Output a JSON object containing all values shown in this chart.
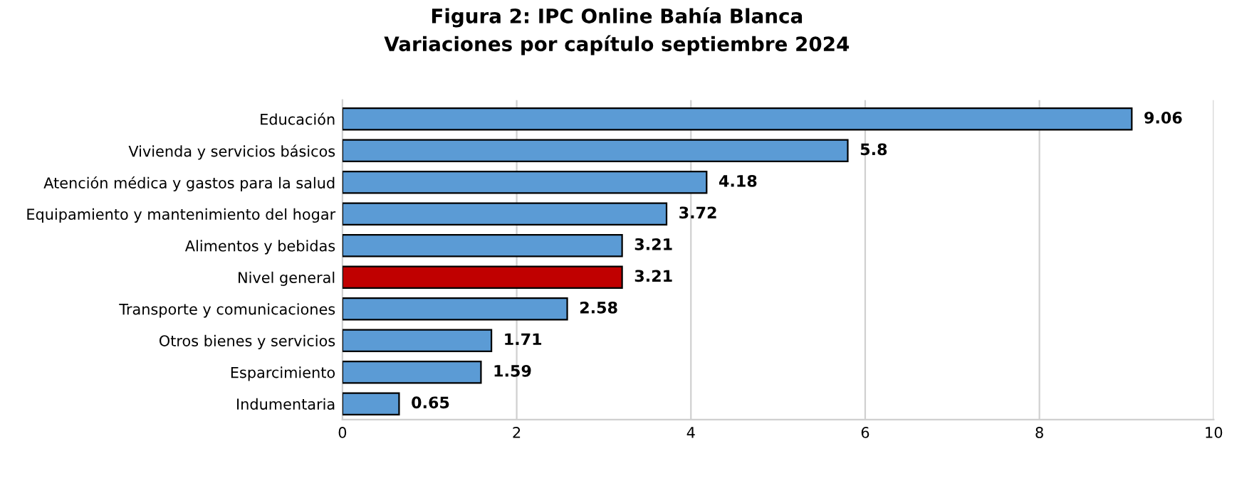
{
  "chart_data": {
    "type": "bar",
    "orientation": "horizontal",
    "title": "Figura 2: IPC Online Bahía Blanca\nVariaciones por capítulo septiembre 2024",
    "categories": [
      "Educación",
      "Vivienda y servicios básicos",
      "Atención médica y gastos para la salud",
      "Equipamiento y mantenimiento del hogar",
      "Alimentos y bebidas",
      "Nivel general",
      "Transporte y comunicaciones",
      "Otros bienes y servicios",
      "Esparcimiento",
      "Indumentaria"
    ],
    "values": [
      9.06,
      5.8,
      4.18,
      3.72,
      3.21,
      3.21,
      2.58,
      1.71,
      1.59,
      0.65
    ],
    "colors": [
      "#5b9bd5",
      "#5b9bd5",
      "#5b9bd5",
      "#5b9bd5",
      "#5b9bd5",
      "#c00000",
      "#5b9bd5",
      "#5b9bd5",
      "#5b9bd5",
      "#5b9bd5"
    ],
    "xlim": [
      0,
      10
    ],
    "xticks": [
      0,
      2,
      4,
      6,
      8,
      10
    ],
    "grid": "x",
    "data_labels": true,
    "legend": false
  }
}
